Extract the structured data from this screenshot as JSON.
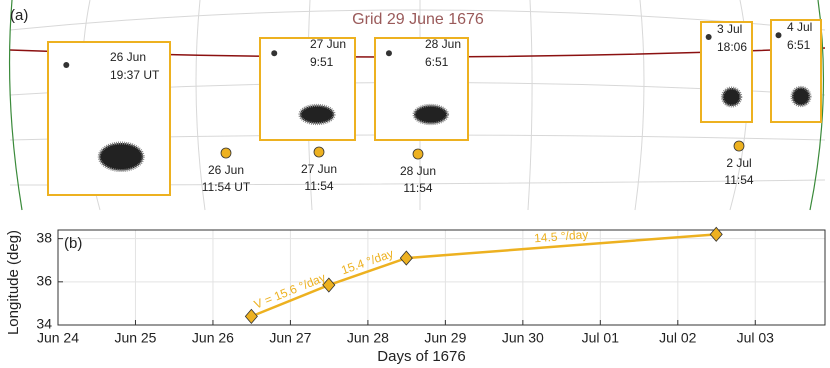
{
  "chart_data": [
    {
      "type": "image",
      "panel_label": "(a)",
      "title": "Grid 29 June 1676",
      "insets": [
        {
          "date": "26 Jun",
          "time": "19:37 UT"
        },
        {
          "date": "27 Jun",
          "time": "9:51"
        },
        {
          "date": "28 Jun",
          "time": "6:51"
        },
        {
          "date": "3 Jul",
          "time": "18:06"
        },
        {
          "date": "4 Jul",
          "time": "6:51"
        }
      ],
      "markers": [
        {
          "date": "26 Jun",
          "time": "11:54 UT"
        },
        {
          "date": "27 Jun",
          "time": "11:54"
        },
        {
          "date": "28 Jun",
          "time": "11:54"
        },
        {
          "date": "2 Jul",
          "time": "11:54"
        }
      ],
      "color": "#edb120"
    },
    {
      "type": "line",
      "panel_label": "(b)",
      "xlabel": "Days of 1676",
      "ylabel": "Longitude (deg)",
      "x": [
        "1676-06-26T11:54",
        "1676-06-27T11:54",
        "1676-06-28T11:54",
        "1676-07-02T11:54"
      ],
      "values": [
        34.4,
        35.85,
        37.1,
        38.2
      ],
      "color": "#edb120",
      "annotations": [
        "V = 15.6 °/day",
        "15.4 °/day",
        "14.5 °/day"
      ],
      "xlim": [
        "1676-06-24T00:00",
        "1676-07-03T21:36"
      ],
      "xticks": [
        {
          "value": "1676-06-24T00:00",
          "label": "Jun 24"
        },
        {
          "value": "1676-06-25T00:00",
          "label": "Jun 25"
        },
        {
          "value": "1676-06-26T00:00",
          "label": "Jun 26"
        },
        {
          "value": "1676-06-27T00:00",
          "label": "Jun 27"
        },
        {
          "value": "1676-06-28T00:00",
          "label": "Jun 28"
        },
        {
          "value": "1676-06-29T00:00",
          "label": "Jun 29"
        },
        {
          "value": "1676-06-30T00:00",
          "label": "Jun 30"
        },
        {
          "value": "1676-07-01T00:00",
          "label": "Jul 01"
        },
        {
          "value": "1676-07-02T00:00",
          "label": "Jul 02"
        },
        {
          "value": "1676-07-03T00:00",
          "label": "Jul 03"
        }
      ],
      "ylim": [
        34,
        38.4
      ],
      "yticks": [
        34,
        36,
        38
      ],
      "grid": true
    }
  ]
}
